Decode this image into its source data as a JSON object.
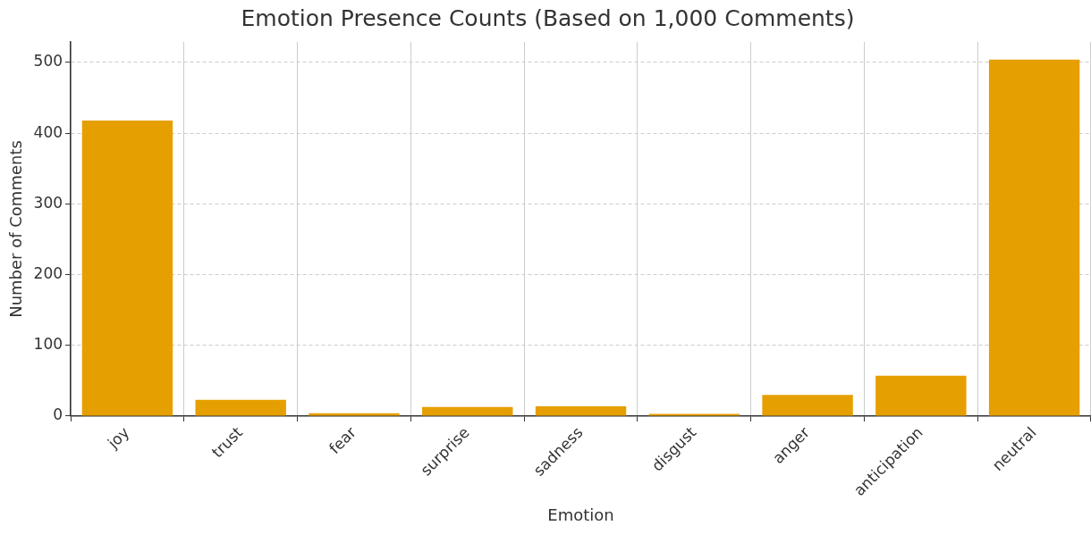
{
  "chart_data": {
    "type": "bar",
    "title": "Emotion Presence Counts (Based on 1,000 Comments)",
    "xlabel": "Emotion",
    "ylabel": "Number of Comments",
    "categories": [
      "joy",
      "trust",
      "fear",
      "surprise",
      "sadness",
      "disgust",
      "anger",
      "anticipation",
      "neutral"
    ],
    "values": [
      418,
      23,
      4,
      13,
      14,
      3,
      30,
      57,
      504
    ],
    "color": "#e69f00",
    "ylim": [
      0,
      529
    ],
    "yticks": [
      0,
      100,
      200,
      300,
      400,
      500
    ],
    "grid": true
  }
}
